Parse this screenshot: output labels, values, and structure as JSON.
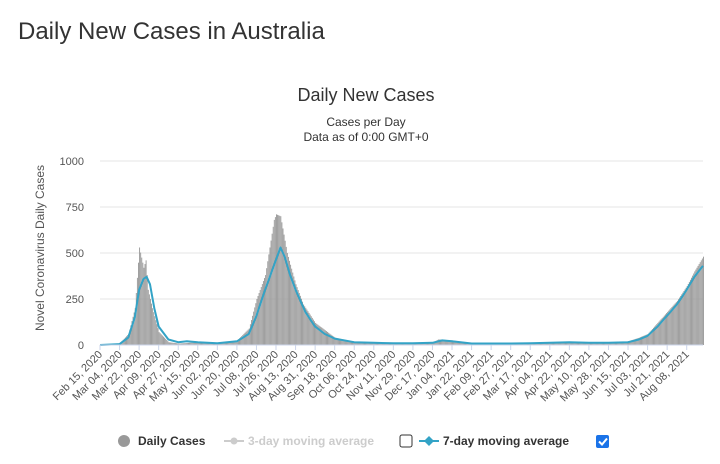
{
  "page": {
    "title": "Daily New Cases in Australia"
  },
  "legend": {
    "daily_label": "Daily Cases",
    "ma3_label": "3-day moving average",
    "ma7_label": "7-day moving average",
    "ma3_checked": false,
    "ma7_checked": true
  },
  "colors": {
    "bars": "#999999",
    "ma7": "#33a3c6",
    "ma3_disabled": "#cccccc",
    "grid": "#e6e6e6",
    "checkbox_checked": "#1a73e8"
  },
  "chart_data": {
    "type": "bar",
    "title": "Daily New Cases",
    "subtitle_1": "Cases per Day",
    "subtitle_2": "Data as of 0:00 GMT+0",
    "ylabel": "Novel Coronavirus Daily Cases",
    "ylim": [
      0,
      1000
    ],
    "yticks": [
      0,
      250,
      500,
      750,
      1000
    ],
    "x_start": "Feb 15, 2020",
    "x_end": "Aug 23, 2021",
    "x_tick_labels": [
      "Feb 15, 2020",
      "Mar 04, 2020",
      "Mar 22, 2020",
      "Apr 09, 2020",
      "Apr 27, 2020",
      "May 15, 2020",
      "Jun 02, 2020",
      "Jun 20, 2020",
      "Jul 08, 2020",
      "Jul 26, 2020",
      "Aug 13, 2020",
      "Aug 31, 2020",
      "Sep 18, 2020",
      "Oct 06, 2020",
      "Oct 24, 2020",
      "Nov 11, 2020",
      "Nov 29, 2020",
      "Dec 17, 2020",
      "Jan 04, 2021",
      "Jan 22, 2021",
      "Feb 09, 2021",
      "Feb 27, 2021",
      "Mar 17, 2021",
      "Apr 04, 2021",
      "Apr 22, 2021",
      "May 10, 2021",
      "May 28, 2021",
      "Jun 15, 2021",
      "Jul 03, 2021",
      "Jul 21, 2021",
      "Aug 08, 2021"
    ],
    "series": [
      {
        "name": "Daily Cases",
        "kind": "bar",
        "points": [
          [
            "Feb 15, 2020",
            0
          ],
          [
            "Mar 04, 2020",
            10
          ],
          [
            "Mar 12, 2020",
            60
          ],
          [
            "Mar 18, 2020",
            200
          ],
          [
            "Mar 22, 2020",
            530
          ],
          [
            "Mar 26, 2020",
            420
          ],
          [
            "Mar 28, 2020",
            460
          ],
          [
            "Mar 30, 2020",
            300
          ],
          [
            "Apr 03, 2020",
            200
          ],
          [
            "Apr 09, 2020",
            70
          ],
          [
            "Apr 18, 2020",
            15
          ],
          [
            "Apr 27, 2020",
            8
          ],
          [
            "May 15, 2020",
            15
          ],
          [
            "Jun 02, 2020",
            10
          ],
          [
            "Jun 20, 2020",
            25
          ],
          [
            "Jul 01, 2020",
            90
          ],
          [
            "Jul 08, 2020",
            250
          ],
          [
            "Jul 16, 2020",
            380
          ],
          [
            "Jul 24, 2020",
            680
          ],
          [
            "Jul 26, 2020",
            710
          ],
          [
            "Jul 30, 2020",
            700
          ],
          [
            "Aug 05, 2020",
            500
          ],
          [
            "Aug 13, 2020",
            330
          ],
          [
            "Aug 20, 2020",
            220
          ],
          [
            "Aug 31, 2020",
            120
          ],
          [
            "Sep 18, 2020",
            40
          ],
          [
            "Oct 06, 2020",
            15
          ],
          [
            "Oct 24, 2020",
            10
          ],
          [
            "Nov 11, 2020",
            8
          ],
          [
            "Nov 29, 2020",
            12
          ],
          [
            "Dec 17, 2020",
            12
          ],
          [
            "Dec 22, 2020",
            30
          ],
          [
            "Jan 04, 2021",
            25
          ],
          [
            "Jan 22, 2021",
            8
          ],
          [
            "Feb 09, 2021",
            8
          ],
          [
            "Feb 27, 2021",
            8
          ],
          [
            "Mar 17, 2021",
            10
          ],
          [
            "Apr 04, 2021",
            12
          ],
          [
            "Apr 22, 2021",
            15
          ],
          [
            "May 10, 2021",
            12
          ],
          [
            "May 28, 2021",
            12
          ],
          [
            "Jun 15, 2021",
            20
          ],
          [
            "Jun 25, 2021",
            40
          ],
          [
            "Jul 03, 2021",
            60
          ],
          [
            "Jul 12, 2021",
            120
          ],
          [
            "Jul 21, 2021",
            180
          ],
          [
            "Jul 30, 2021",
            240
          ],
          [
            "Aug 08, 2021",
            320
          ],
          [
            "Aug 15, 2021",
            400
          ],
          [
            "Aug 23, 2021",
            480
          ]
        ]
      },
      {
        "name": "7-day moving average",
        "kind": "line",
        "points": [
          [
            "Feb 15, 2020",
            0
          ],
          [
            "Mar 04, 2020",
            5
          ],
          [
            "Mar 12, 2020",
            40
          ],
          [
            "Mar 18, 2020",
            150
          ],
          [
            "Mar 22, 2020",
            300
          ],
          [
            "Mar 26, 2020",
            360
          ],
          [
            "Mar 29, 2020",
            370
          ],
          [
            "Apr 01, 2020",
            330
          ],
          [
            "Apr 05, 2020",
            200
          ],
          [
            "Apr 09, 2020",
            100
          ],
          [
            "Apr 18, 2020",
            30
          ],
          [
            "Apr 27, 2020",
            15
          ],
          [
            "May 05, 2020",
            20
          ],
          [
            "May 15, 2020",
            15
          ],
          [
            "Jun 02, 2020",
            10
          ],
          [
            "Jun 20, 2020",
            20
          ],
          [
            "Jul 01, 2020",
            60
          ],
          [
            "Jul 08, 2020",
            160
          ],
          [
            "Jul 16, 2020",
            300
          ],
          [
            "Jul 24, 2020",
            430
          ],
          [
            "Jul 30, 2020",
            530
          ],
          [
            "Aug 03, 2020",
            480
          ],
          [
            "Aug 08, 2020",
            380
          ],
          [
            "Aug 13, 2020",
            300
          ],
          [
            "Aug 22, 2020",
            180
          ],
          [
            "Aug 31, 2020",
            100
          ],
          [
            "Sep 09, 2020",
            60
          ],
          [
            "Sep 18, 2020",
            35
          ],
          [
            "Oct 06, 2020",
            15
          ],
          [
            "Oct 24, 2020",
            12
          ],
          [
            "Nov 11, 2020",
            10
          ],
          [
            "Nov 29, 2020",
            10
          ],
          [
            "Dec 17, 2020",
            12
          ],
          [
            "Dec 26, 2020",
            25
          ],
          [
            "Jan 04, 2021",
            20
          ],
          [
            "Jan 22, 2021",
            8
          ],
          [
            "Feb 09, 2021",
            8
          ],
          [
            "Feb 27, 2021",
            8
          ],
          [
            "Mar 17, 2021",
            10
          ],
          [
            "Apr 04, 2021",
            12
          ],
          [
            "Apr 22, 2021",
            15
          ],
          [
            "May 10, 2021",
            12
          ],
          [
            "May 28, 2021",
            12
          ],
          [
            "Jun 15, 2021",
            15
          ],
          [
            "Jun 25, 2021",
            30
          ],
          [
            "Jul 03, 2021",
            50
          ],
          [
            "Jul 12, 2021",
            100
          ],
          [
            "Jul 21, 2021",
            160
          ],
          [
            "Jul 30, 2021",
            220
          ],
          [
            "Aug 08, 2021",
            300
          ],
          [
            "Aug 15, 2021",
            370
          ],
          [
            "Aug 23, 2021",
            430
          ]
        ]
      }
    ],
    "grid": true,
    "legend_position": "bottom"
  }
}
